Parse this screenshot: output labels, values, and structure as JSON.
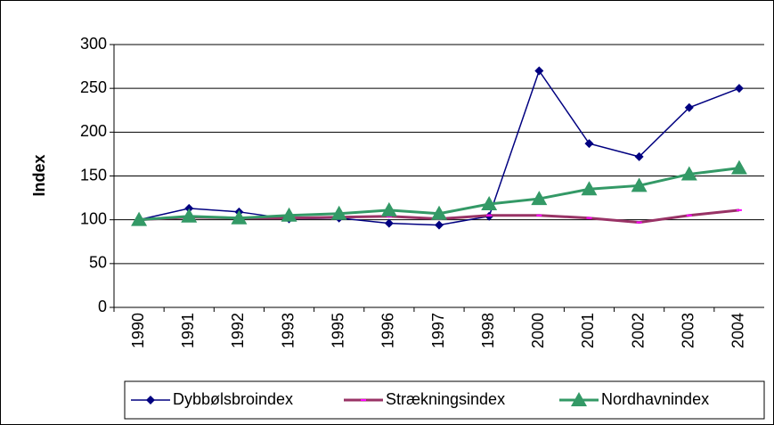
{
  "chart_data": {
    "type": "line",
    "y_label": "Index",
    "categories": [
      "1990",
      "1991",
      "1992",
      "1993",
      "1995",
      "1996",
      "1997",
      "1998",
      "2000",
      "2001",
      "2002",
      "2003",
      "2004"
    ],
    "series": [
      {
        "name": "Dybbølsbroindex",
        "color": "#000080",
        "marker": "diamond",
        "values": [
          100,
          113,
          109,
          101,
          102,
          96,
          94,
          104,
          270,
          187,
          172,
          228,
          250
        ]
      },
      {
        "name": "Strækningsindex",
        "color": "#993366",
        "marker": "dash",
        "values": [
          100,
          103,
          102,
          102,
          103,
          104,
          101,
          105,
          105,
          102,
          97,
          105,
          111
        ]
      },
      {
        "name": "Nordhavnindex",
        "color": "#339966",
        "marker": "triangle",
        "values": [
          100,
          104,
          102,
          105,
          107,
          111,
          107,
          118,
          124,
          135,
          139,
          152,
          159
        ]
      }
    ],
    "ylim": [
      0,
      300
    ],
    "yticks": [
      0,
      50,
      100,
      150,
      200,
      250,
      300
    ],
    "grid": true,
    "legend": "bottom"
  }
}
